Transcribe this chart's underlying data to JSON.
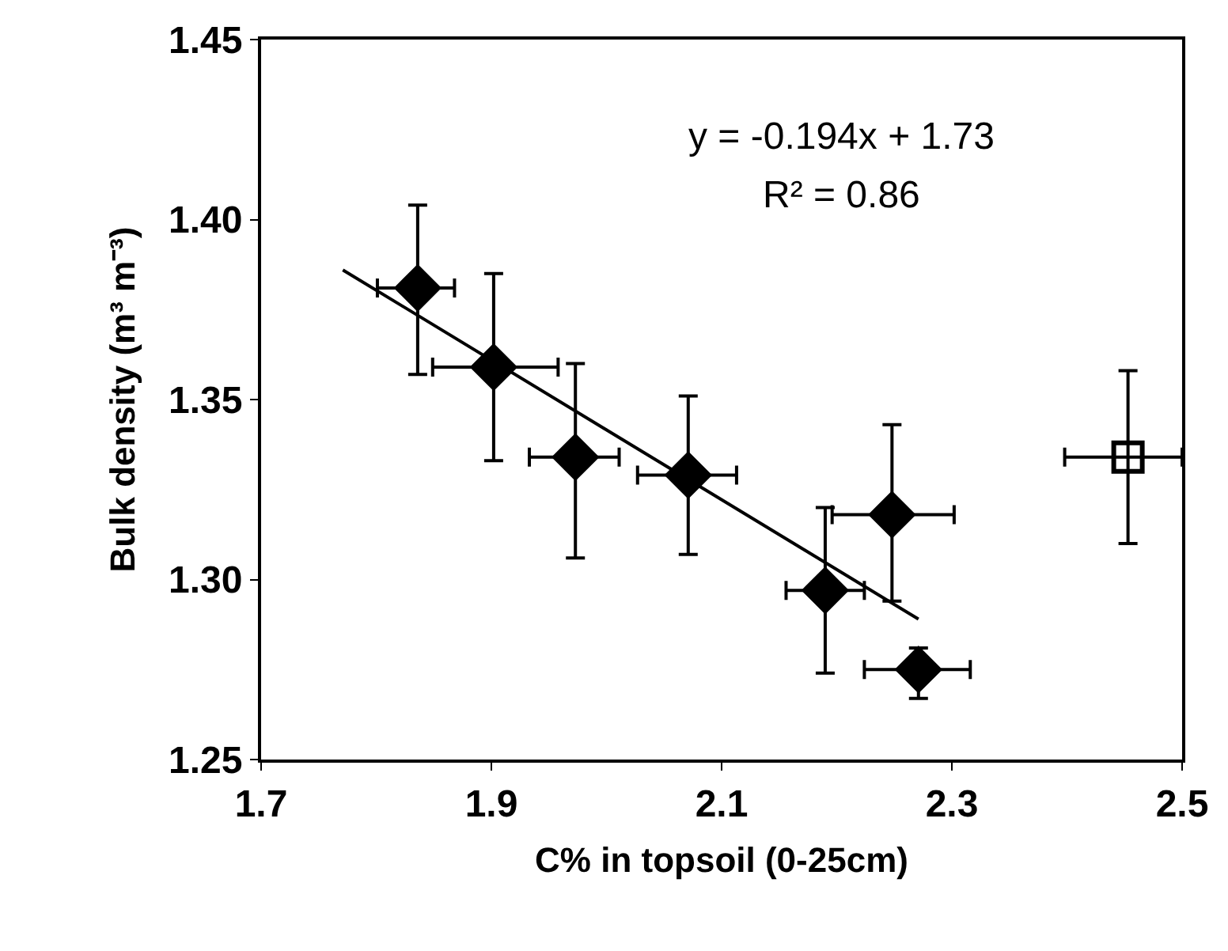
{
  "chart_data": {
    "type": "scatter",
    "xlabel": "C% in topsoil (0-25cm)",
    "ylabel": "Bulk density (m³ m⁻³)",
    "xlim": [
      1.7,
      2.5
    ],
    "xticks": [
      1.7,
      1.9,
      2.1,
      2.3,
      2.5
    ],
    "ylim": [
      1.25,
      1.45
    ],
    "yticks": [
      1.25,
      {
        "value": 1.3,
        "label": "1.30"
      },
      1.35,
      {
        "value": 1.4,
        "label": "1.40"
      },
      1.45
    ],
    "annotations": [
      "y = -0.194x + 1.73",
      "R² = 0.86"
    ],
    "series": [
      {
        "marker": "diamond",
        "color": "#000000",
        "x": [
          1.836,
          1.902,
          1.973,
          2.071,
          2.19,
          2.248,
          2.271
        ],
        "values": [
          1.381,
          1.359,
          1.334,
          1.329,
          1.297,
          1.318,
          1.275
        ],
        "errors": [
          [
            1.357,
            1.404
          ],
          [
            1.333,
            1.385
          ],
          [
            1.306,
            1.36
          ],
          [
            1.307,
            1.351
          ],
          [
            1.274,
            1.32
          ],
          [
            1.294,
            1.343
          ],
          [
            1.267,
            1.281
          ]
        ],
        "xerrors": [
          [
            1.801,
            1.868
          ],
          [
            1.849,
            1.958
          ],
          [
            1.933,
            2.011
          ],
          [
            2.027,
            2.113
          ],
          [
            2.156,
            2.224
          ],
          [
            2.196,
            2.302
          ],
          [
            2.224,
            2.316
          ]
        ]
      },
      {
        "marker": "square-open",
        "color": "#000000",
        "x": [
          2.453
        ],
        "values": [
          1.334
        ],
        "errors": [
          [
            1.31,
            1.358
          ]
        ],
        "xerrors": [
          [
            2.398,
            2.5
          ]
        ]
      },
      {
        "type": "line",
        "color": "#000000",
        "line_style": "solid",
        "x": [
          1.771,
          2.271
        ],
        "values": [
          1.386,
          1.289
        ]
      }
    ]
  }
}
